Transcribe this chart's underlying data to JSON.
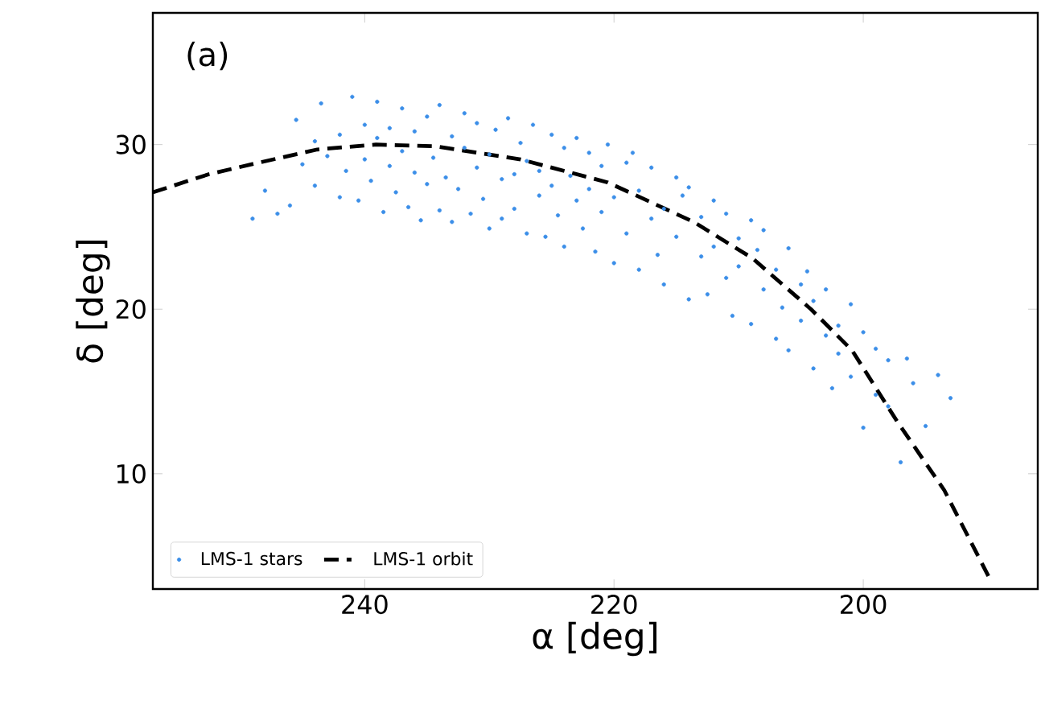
{
  "chart_data": {
    "type": "scatter",
    "xlabel": "α [deg]",
    "ylabel": "δ [deg]",
    "xlim": [
      257,
      186
    ],
    "ylim": [
      3,
      38
    ],
    "xticks": [
      240,
      220,
      200
    ],
    "yticks": [
      10,
      20,
      30
    ],
    "grid": false,
    "legend": "bottom left",
    "annotations": [
      "(a)"
    ],
    "series": [
      {
        "name": "LMS-1 stars",
        "color": "#3b8ee8",
        "marker": "circle",
        "x": [
          249,
          247,
          248,
          246,
          245,
          245.5,
          244,
          244,
          243,
          243.5,
          242,
          242,
          241.5,
          241,
          240.5,
          240,
          240,
          239.5,
          239,
          239,
          238.5,
          238,
          238,
          237.5,
          237,
          237,
          236.5,
          236,
          236,
          235.5,
          235,
          235,
          234.5,
          234,
          234,
          233.5,
          233,
          233,
          232.5,
          232,
          232,
          231.5,
          231,
          231,
          230.5,
          230,
          230,
          229.5,
          229,
          229,
          228.5,
          228,
          228,
          227.5,
          227,
          227,
          226.5,
          226,
          226,
          225.5,
          225,
          225,
          224.5,
          224,
          224,
          223.5,
          223,
          223,
          222.5,
          222,
          222,
          221.5,
          221,
          221,
          220.5,
          220,
          220,
          219,
          219,
          218.5,
          218,
          218,
          217,
          217,
          216.5,
          216,
          216,
          215,
          215,
          214.5,
          214,
          214,
          213,
          213,
          212.5,
          212,
          212,
          211,
          211,
          210.5,
          210,
          210,
          209,
          209,
          208.5,
          208,
          208,
          207,
          207,
          206.5,
          206,
          206,
          205,
          205,
          204.5,
          204,
          204,
          203,
          203,
          202.5,
          202,
          202,
          201,
          201,
          200,
          200,
          199,
          199,
          198,
          198,
          197,
          196.5,
          196,
          195,
          194,
          193
        ],
        "values": [
          25.5,
          25.8,
          27.2,
          26.3,
          28.8,
          31.5,
          27.5,
          30.2,
          29.3,
          32.5,
          26.8,
          30.6,
          28.4,
          32.9,
          26.6,
          29.1,
          31.2,
          27.8,
          30.4,
          32.6,
          25.9,
          28.7,
          31.0,
          27.1,
          29.6,
          32.2,
          26.2,
          28.3,
          30.8,
          25.4,
          27.6,
          31.7,
          29.2,
          26.0,
          32.4,
          28.0,
          25.3,
          30.5,
          27.3,
          29.8,
          31.9,
          25.8,
          28.6,
          31.3,
          26.7,
          24.9,
          29.4,
          30.9,
          27.9,
          25.5,
          31.6,
          28.2,
          26.1,
          30.1,
          24.6,
          29.0,
          31.2,
          26.9,
          28.4,
          24.4,
          30.6,
          27.5,
          25.7,
          29.8,
          23.8,
          28.1,
          26.6,
          30.4,
          24.9,
          27.3,
          29.5,
          23.5,
          28.7,
          25.9,
          30.0,
          22.8,
          26.8,
          28.9,
          24.6,
          29.5,
          22.4,
          27.2,
          25.5,
          28.6,
          23.3,
          26.1,
          21.5,
          28.0,
          24.4,
          26.9,
          20.6,
          27.4,
          23.2,
          25.6,
          20.9,
          26.6,
          23.8,
          21.9,
          25.8,
          19.6,
          24.3,
          22.6,
          25.4,
          19.1,
          23.6,
          21.2,
          24.8,
          18.2,
          22.4,
          20.1,
          23.7,
          17.5,
          21.5,
          19.3,
          22.3,
          16.4,
          20.5,
          18.4,
          21.2,
          15.2,
          19.0,
          17.3,
          20.3,
          15.9,
          18.6,
          12.8,
          17.6,
          14.8,
          16.9,
          14.1,
          10.7,
          17.0,
          15.5,
          12.9,
          16.0,
          14.6
        ]
      },
      {
        "name": "LMS-1 orbit",
        "type": "line",
        "color": "#000000",
        "line_style": "dashed",
        "marker": "none",
        "x": [
          257,
          252.5,
          248.5,
          243.8,
          239.1,
          234.4,
          227.5,
          220.5,
          213.6,
          208.9,
          204.2,
          200.9,
          197.3,
          193.5,
          189.9
        ],
        "values": [
          27.1,
          28.2,
          28.9,
          29.7,
          30.0,
          29.9,
          29.1,
          27.7,
          25.3,
          23.1,
          20.0,
          17.5,
          13.2,
          9.0,
          3.7
        ]
      }
    ]
  }
}
